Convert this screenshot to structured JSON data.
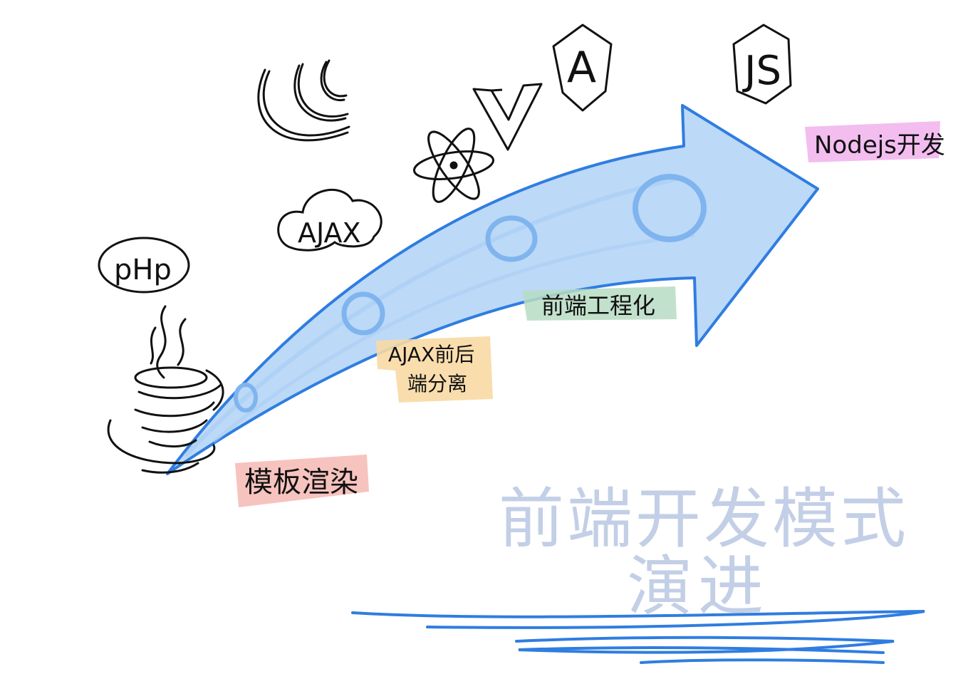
{
  "icons": {
    "php": {
      "label": "pHp",
      "name": "php-logo-icon"
    },
    "ajax": {
      "label": "AJAX",
      "name": "ajax-cloud-icon"
    },
    "vue": {
      "label": "V",
      "name": "vue-logo-icon"
    },
    "angular": {
      "label": "A",
      "name": "angular-logo-icon"
    },
    "nodejs": {
      "label": "JS",
      "name": "nodejs-logo-icon"
    },
    "java": {
      "name": "java-coffee-cup-icon"
    },
    "jquery": {
      "name": "jquery-logo-icon"
    },
    "react": {
      "name": "react-atom-icon"
    }
  },
  "stages": [
    {
      "id": "template",
      "label": "模板渲染",
      "highlight": "#f6b9b4"
    },
    {
      "id": "ajax-split",
      "line1": "AJAX前后",
      "line2": "端分离",
      "highlight": "#f8d9a4"
    },
    {
      "id": "engineering",
      "label": "前端工程化",
      "highlight": "#b7dcc3"
    },
    {
      "id": "nodejs",
      "label": "Nodejs开发",
      "highlight": "#f1b2ec"
    }
  ],
  "watermark": {
    "line1": "前端开发模式",
    "line2": "演进"
  },
  "colors": {
    "arrow_fill": "#bcd9f7",
    "arrow_stroke": "#2f7de0",
    "ink": "#111111",
    "watermark": "#c3cfe6",
    "underline": "#2f7de0"
  }
}
